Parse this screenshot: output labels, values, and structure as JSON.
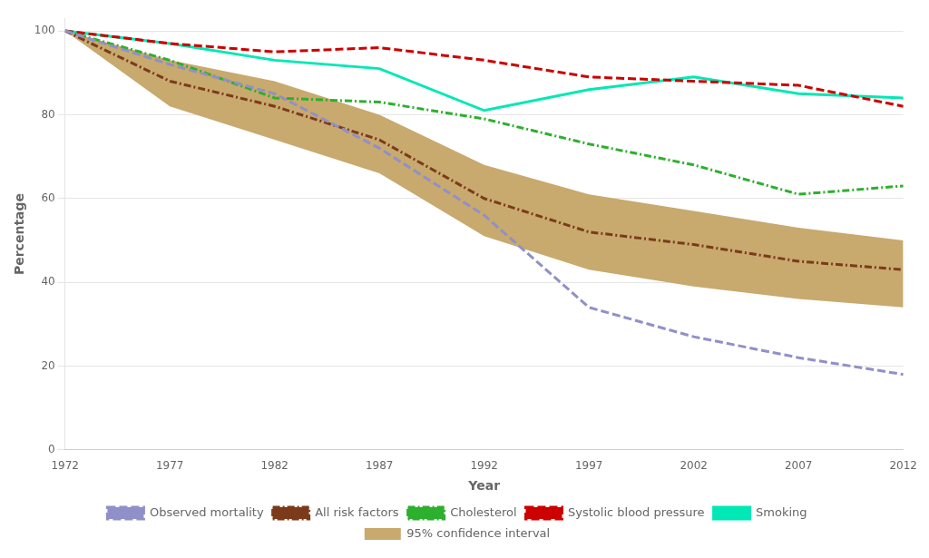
{
  "chart_data": {
    "type": "line",
    "xlabel": "Year",
    "ylabel": "Percentage",
    "x": [
      1972,
      1977,
      1982,
      1987,
      1992,
      1997,
      2002,
      2007,
      2012
    ],
    "series": [
      {
        "name": "Smoking",
        "color": "#00e8b5",
        "line_style": "solid",
        "values": [
          100,
          97,
          93,
          91,
          81,
          86,
          89,
          85,
          84
        ]
      },
      {
        "name": "Systolic blood pressure",
        "color": "#cc0000",
        "line_style": "dashed",
        "values": [
          100,
          97,
          95,
          96,
          93,
          89,
          88,
          87,
          82
        ]
      },
      {
        "name": "Cholesterol",
        "color": "#2db02d",
        "line_style": "dashdot",
        "values": [
          100,
          93,
          84,
          83,
          79,
          73,
          68,
          61,
          63
        ]
      },
      {
        "name": "All risk factors",
        "color": "#7B3B1A",
        "line_style": "dashdot",
        "values": [
          100,
          88,
          82,
          74,
          60,
          52,
          49,
          45,
          43
        ]
      },
      {
        "name": "95% confidence interval",
        "type": "area",
        "color": "#c8a96e",
        "lower": [
          100,
          82,
          74,
          66,
          51,
          43,
          39,
          36,
          34
        ],
        "upper": [
          100,
          93,
          88,
          80,
          68,
          61,
          57,
          53,
          50
        ]
      },
      {
        "name": "Observed mortality",
        "color": "#9090c8",
        "line_style": "dashed",
        "values": [
          100,
          92,
          85,
          72,
          56,
          34,
          27,
          22,
          18
        ]
      }
    ],
    "xlim": [
      1972,
      2012
    ],
    "xticks": [
      1972,
      1977,
      1982,
      1987,
      1992,
      1997,
      2002,
      2007,
      2012
    ],
    "ylim": [
      0,
      103
    ],
    "yticks": [
      0,
      20,
      40,
      60,
      80,
      100
    ],
    "grid": "y",
    "legend": "bottom"
  }
}
